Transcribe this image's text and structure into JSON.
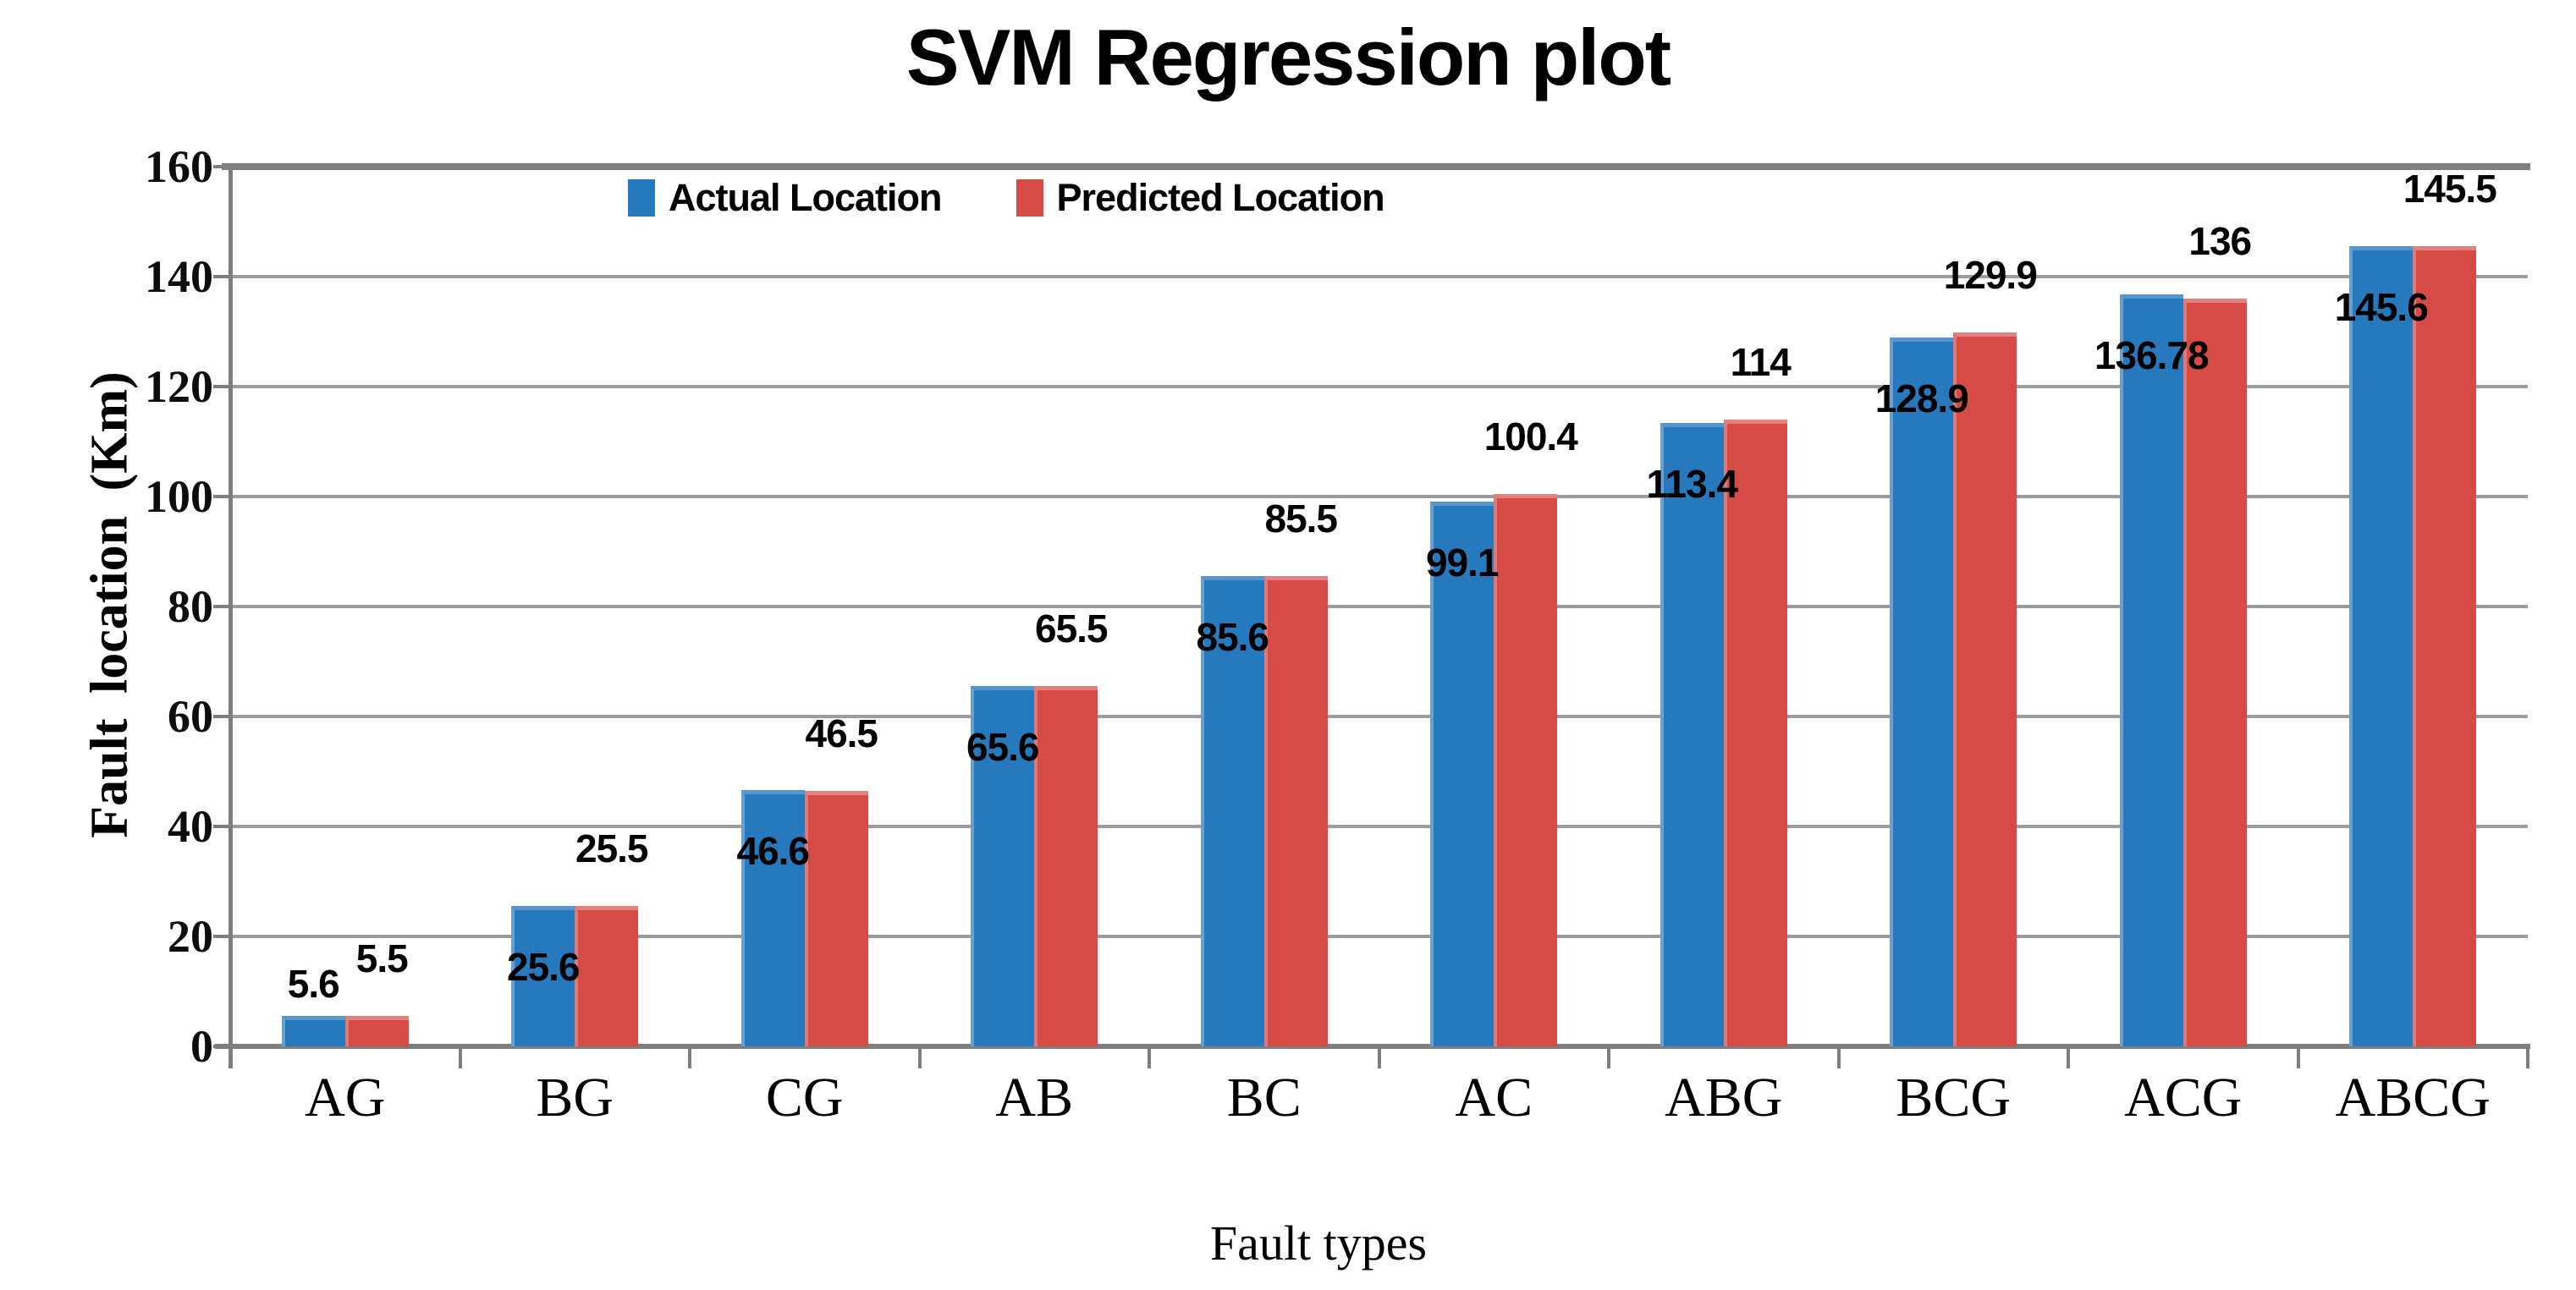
{
  "title": "SVM Regression plot",
  "chart_data": {
    "type": "bar",
    "title": "SVM Regression plot",
    "xlabel": "Fault types",
    "ylabel": "Fault location (Km)",
    "ylim": [
      0,
      160
    ],
    "yticks": [
      0,
      20,
      40,
      60,
      80,
      100,
      120,
      140,
      160
    ],
    "ytick_labels": [
      "0",
      "20",
      "40",
      "60",
      "80",
      "100",
      "120",
      "140",
      "160"
    ],
    "grid": true,
    "legend_position": "top-left-inside",
    "categories": [
      "AG",
      "BG",
      "CG",
      "AB",
      "BC",
      "AC",
      "ABG",
      "BCG",
      "ACG",
      "ABCG"
    ],
    "series": [
      {
        "name": "Actual Location",
        "color": "#2779BE",
        "values": [
          5.6,
          25.6,
          46.6,
          65.6,
          85.6,
          99.1,
          113.4,
          128.9,
          136.78,
          145.6
        ],
        "labels": [
          "5.6",
          "25.6",
          "46.6",
          "65.6",
          "85.6",
          "99.1",
          "113.4",
          "128.9",
          "136.78",
          "145.6"
        ]
      },
      {
        "name": "Predicted Location",
        "color": "#D64B45",
        "values": [
          5.5,
          25.5,
          46.5,
          65.5,
          85.5,
          100.4,
          114,
          129.9,
          136,
          145.5
        ],
        "labels": [
          "5.5",
          "25.5",
          "46.5",
          "65.5",
          "85.5",
          "100.4",
          "114",
          "129.9",
          "136",
          "145.5"
        ]
      }
    ],
    "colors": {
      "gridline": "#9c9c9c",
      "axis": "#7e7e7e",
      "text": "#000000"
    }
  }
}
